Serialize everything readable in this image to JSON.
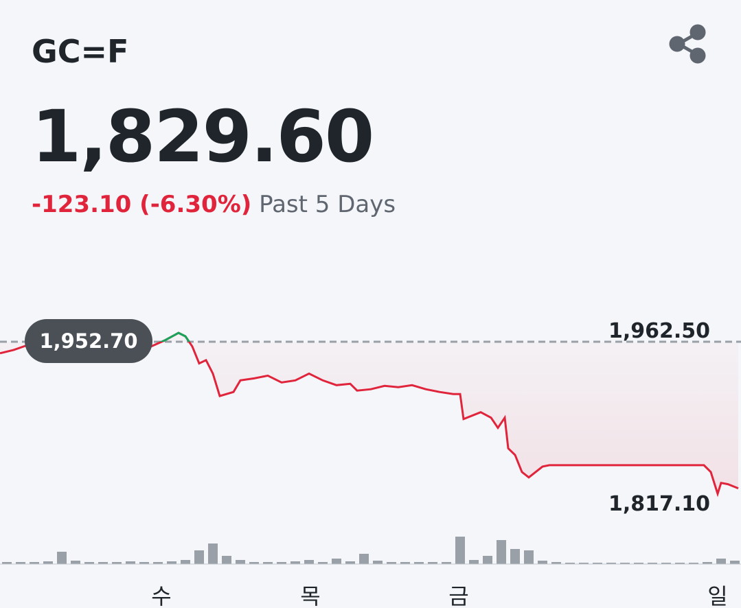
{
  "header": {
    "symbol": "GC=F",
    "price": "1,829.60",
    "change": "-123.10 (-6.30%)",
    "period": "Past 5 Days"
  },
  "chart_data": {
    "type": "line",
    "x": [
      0,
      2,
      4,
      6,
      8,
      10,
      12,
      14,
      16,
      18,
      20,
      22,
      24,
      26,
      27,
      28,
      29,
      30,
      31,
      32,
      34,
      35,
      37,
      39,
      41,
      43,
      45,
      47,
      49,
      51,
      52,
      54,
      56,
      58,
      60,
      62,
      64,
      66,
      67,
      67.5,
      70,
      71.5,
      72.5,
      73.5,
      74,
      75,
      76,
      77,
      79,
      80,
      102.5,
      103.5,
      104.5,
      105,
      106,
      107.5
    ],
    "series": [
      {
        "color": "#e0243b",
        "values": [
          1942.5,
          1945.5,
          1949.7,
          1951.5,
          1953.9,
          1955.7,
          1954.5,
          1954.5,
          1956.3,
          1951.5,
          1948.5,
          1948.5,
          1953.9,
          1960.5,
          1957.5,
          1948.5,
          1933.6,
          1936.5,
          1924.6,
          1904.8,
          1908.4,
          1918.6,
          1920.4,
          1922.8,
          1916.8,
          1918.6,
          1924.6,
          1918.6,
          1914.4,
          1915.6,
          1909.6,
          1910.8,
          1913.8,
          1912.6,
          1914.4,
          1910.8,
          1908.4,
          1906.6,
          1906.6,
          1884.5,
          1890.5,
          1885.7,
          1876.7,
          1885.7,
          1858.7,
          1852.8,
          1837.8,
          1833.0,
          1842.6,
          1843.8,
          1843.8,
          1837.8,
          1818.6,
          1828.2,
          1827.0,
          1823.4
        ]
      }
    ],
    "up_color": "#1aa35b",
    "reference_line": {
      "value": 1952.7,
      "label": "1,952.70"
    },
    "high": {
      "value": 1962.5,
      "label": "1,962.50"
    },
    "low": {
      "value": 1817.1,
      "label": "1,817.10"
    },
    "xlim": [
      0,
      107.9
    ],
    "ylim": [
      1817.1,
      1952.7
    ],
    "xticks": [
      {
        "value": 23.5,
        "label": "수"
      },
      {
        "value": 45.2,
        "label": "목"
      },
      {
        "value": 66.8,
        "label": "금"
      },
      {
        "value": 104.5,
        "label": "일"
      }
    ],
    "volume": {
      "color": "#9aa0a8",
      "x": [
        1,
        3,
        5,
        7,
        9,
        11,
        13,
        15,
        17,
        19,
        21,
        23,
        25,
        27,
        29,
        31,
        33,
        35,
        37,
        39,
        41,
        43,
        45,
        47,
        49,
        51,
        53,
        55,
        57,
        59,
        61,
        63,
        65,
        67,
        69,
        71,
        73,
        75,
        77,
        79,
        81,
        83,
        85,
        87,
        89,
        91,
        93,
        95,
        97,
        99,
        101,
        103,
        105,
        107
      ],
      "values": [
        3,
        3,
        3,
        4,
        18,
        5,
        3,
        3,
        3,
        4,
        3,
        3,
        4,
        6,
        20,
        30,
        12,
        6,
        3,
        3,
        3,
        4,
        6,
        3,
        8,
        4,
        15,
        5,
        3,
        3,
        3,
        3,
        3,
        40,
        6,
        12,
        35,
        22,
        20,
        5,
        3,
        2,
        2,
        2,
        2,
        2,
        2,
        2,
        2,
        2,
        2,
        3,
        8,
        5
      ]
    },
    "y2lim": [
      0,
      50
    ]
  }
}
